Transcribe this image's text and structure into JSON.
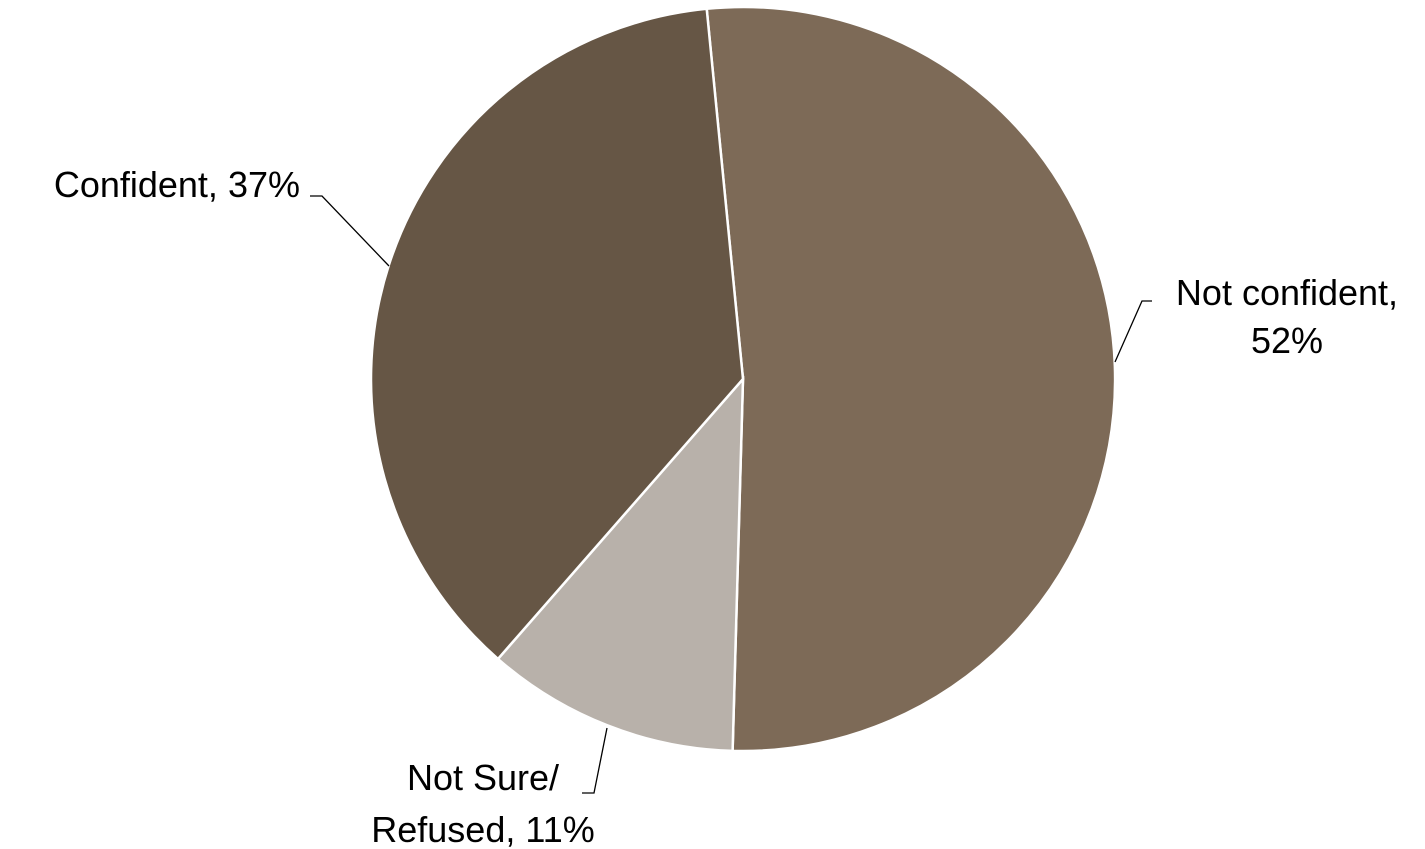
{
  "chart_data": {
    "type": "pie",
    "title": "",
    "slices": [
      {
        "label": "Not confident",
        "value": 52,
        "display": [
          "Not confident,",
          "52%"
        ],
        "color": "#7d6a57"
      },
      {
        "label": "Not Sure/ Refused",
        "value": 11,
        "display": [
          "Not Sure/",
          "Refused, 11%"
        ],
        "color": "#b8b1aa"
      },
      {
        "label": "Confident",
        "value": 37,
        "display": [
          "Confident, 37%"
        ],
        "color": "#665645"
      }
    ],
    "legend": "none",
    "start_angle_deg": -5.6
  }
}
